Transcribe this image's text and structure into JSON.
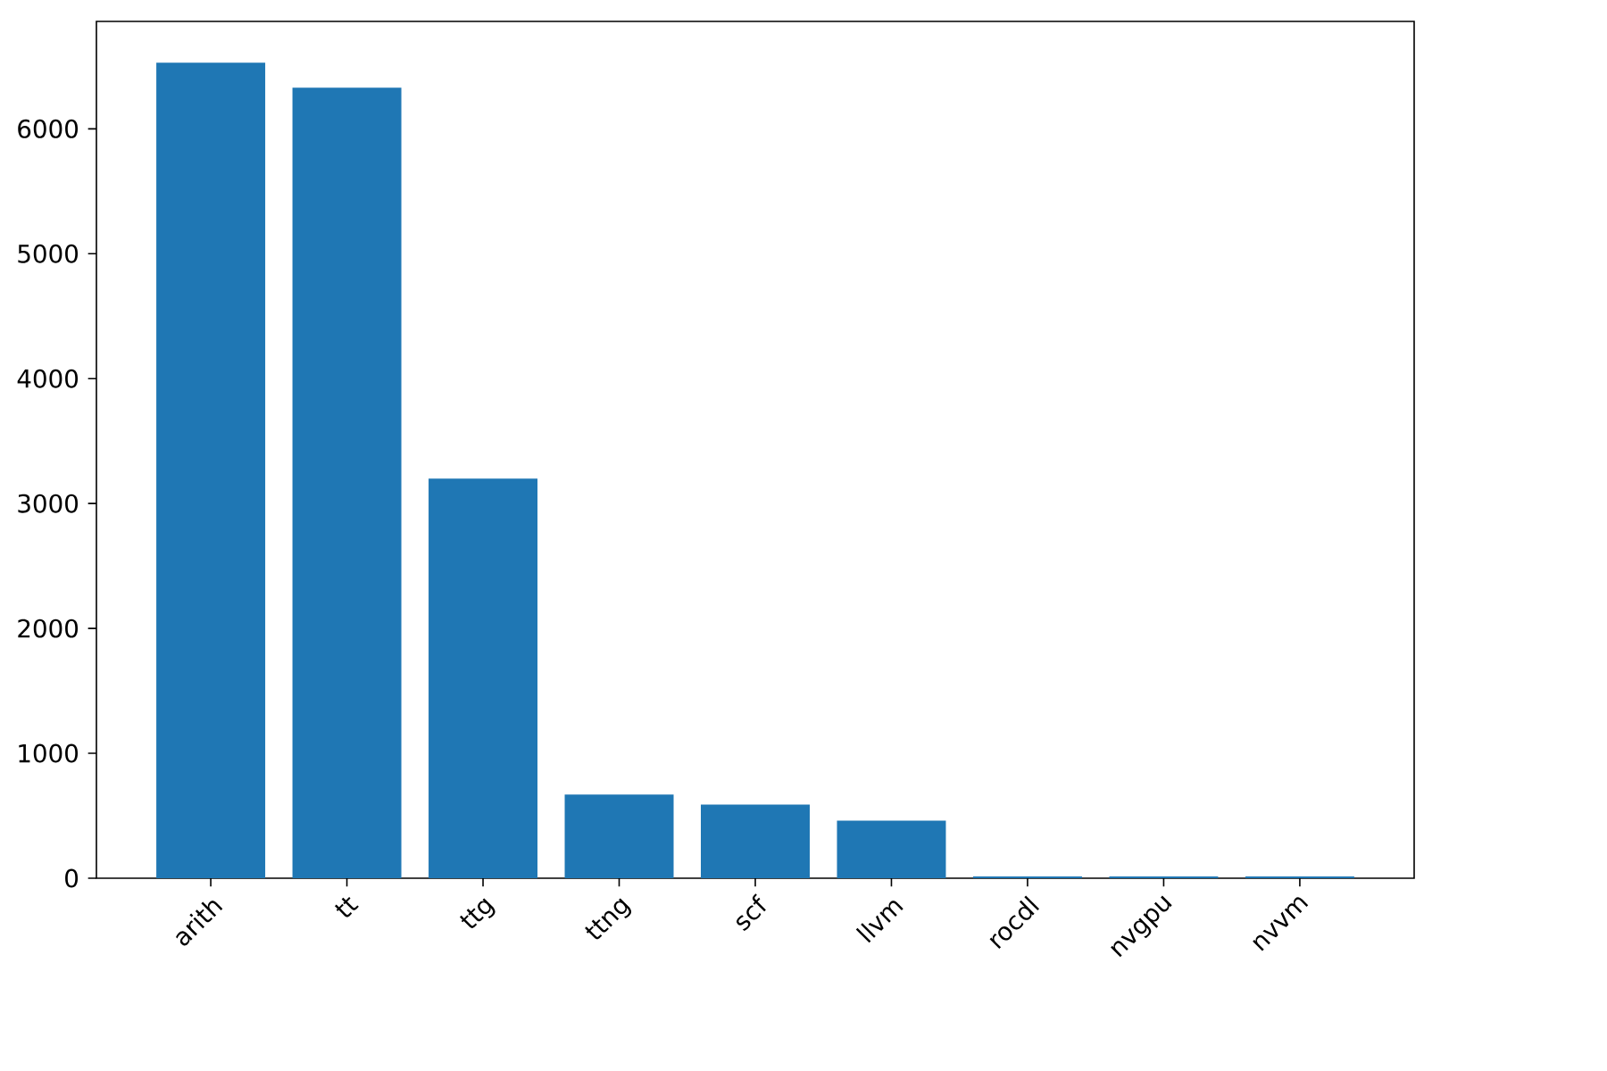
{
  "chart_data": {
    "type": "bar",
    "categories": [
      "arith",
      "tt",
      "ttg",
      "ttng",
      "scf",
      "llvm",
      "rocdl",
      "nvgpu",
      "nvvm"
    ],
    "values": [
      6530,
      6330,
      3200,
      670,
      590,
      460,
      15,
      15,
      15
    ],
    "color": "#1f77b4",
    "ylim": [
      0,
      6860
    ],
    "yticks": [
      0,
      1000,
      2000,
      3000,
      4000,
      5000,
      6000
    ],
    "grid": false
  }
}
